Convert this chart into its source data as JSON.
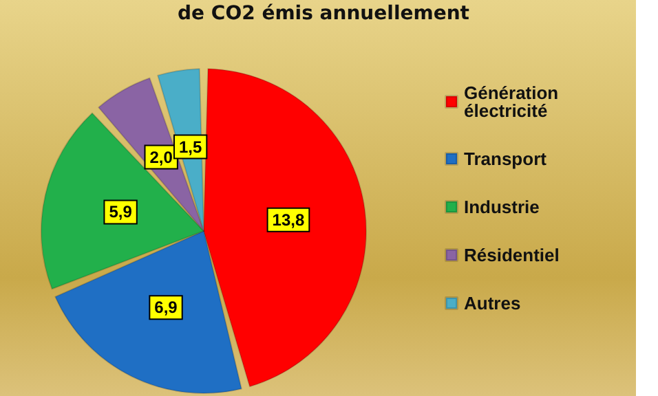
{
  "chart_data": {
    "type": "pie",
    "title": "de CO2 émis annuellement",
    "categories": [
      "Génération\nélectricité",
      "Transport",
      "Industrie",
      "Résidentiel",
      "Autres"
    ],
    "values": [
      13.8,
      6.9,
      5.9,
      2.0,
      1.5
    ],
    "value_labels": [
      "13,8",
      "6,9",
      "5,9",
      "2,0",
      "1,5"
    ],
    "colors": [
      "#ff0000",
      "#1f6fc4",
      "#22b04b",
      "#8a64a4",
      "#4aaec8"
    ],
    "legend": "right"
  }
}
